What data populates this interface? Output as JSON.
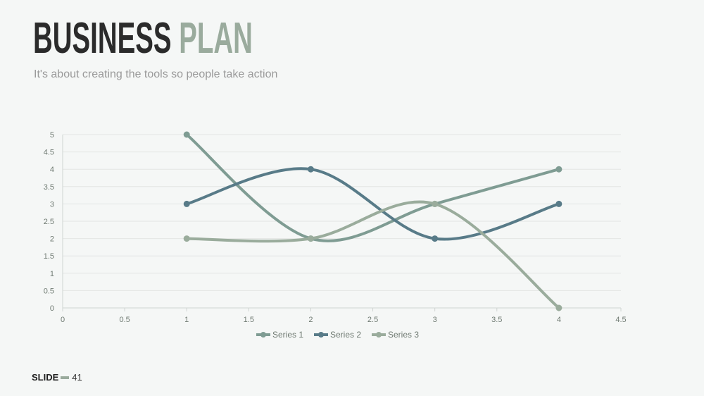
{
  "slide": {
    "title_word1": "BUSINESS",
    "title_word2": "PLAN",
    "subtitle": "It's about creating the tools so people take action",
    "footer_label": "SLIDE",
    "slide_number": "41"
  },
  "colors": {
    "title_dark": "#2b2b2b",
    "title_accent": "#9aab9d",
    "series1": "#7f9c93",
    "series2": "#587b88",
    "series3": "#9aac9c"
  },
  "chart_data": {
    "type": "line",
    "smooth": true,
    "xlim": [
      0,
      4.5
    ],
    "ylim": [
      0,
      5
    ],
    "x_ticks": [
      "0",
      "0.5",
      "1",
      "1.5",
      "2",
      "2.5",
      "3",
      "3.5",
      "4",
      "4.5"
    ],
    "y_ticks": [
      "0",
      "0.5",
      "1",
      "1.5",
      "2",
      "2.5",
      "3",
      "3.5",
      "4",
      "4.5",
      "5"
    ],
    "grid": true,
    "legend_position": "bottom",
    "series": [
      {
        "name": "Series 1",
        "color": "#7f9c93",
        "points": [
          [
            1,
            5
          ],
          [
            2,
            2
          ],
          [
            3,
            3
          ],
          [
            4,
            4
          ]
        ]
      },
      {
        "name": "Series 2",
        "color": "#587b88",
        "points": [
          [
            1,
            3
          ],
          [
            2,
            4
          ],
          [
            3,
            2
          ],
          [
            4,
            3
          ]
        ]
      },
      {
        "name": "Series 3",
        "color": "#9aac9c",
        "points": [
          [
            1,
            2
          ],
          [
            2,
            2
          ],
          [
            3,
            3
          ],
          [
            4,
            0
          ]
        ]
      }
    ]
  }
}
